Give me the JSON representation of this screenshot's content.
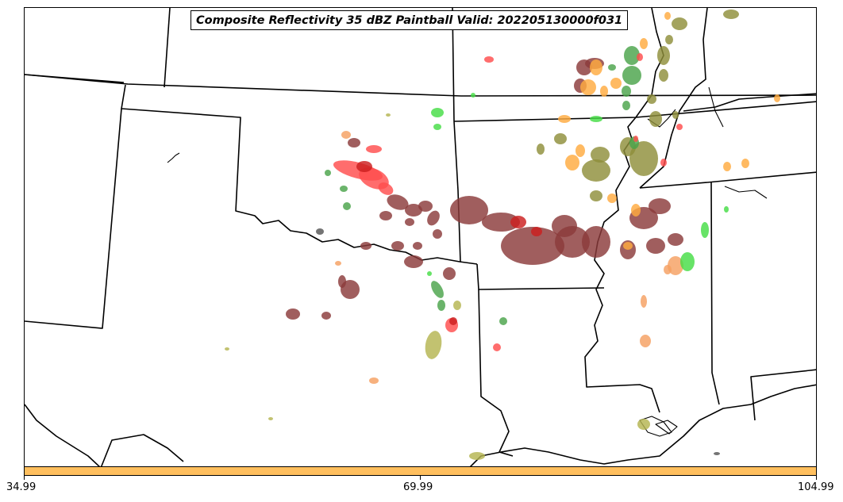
{
  "title": "Composite Reflectivity 35 dBZ Paintball Valid: 202205130000f031",
  "colorbar": {
    "color": "#ffbf5e",
    "ticks": [
      "34.99",
      "69.99",
      "104.99"
    ]
  },
  "colors": {
    "dark_red": "#8b3a3a",
    "crimson": "#cc1f1f",
    "red": "#ff4d4d",
    "orange": "#ffab40",
    "light_orange": "#f5a062",
    "olive": "#8f8f3a",
    "khaki": "#b5b550",
    "green": "#4ba34b",
    "bright_green": "#45dd45",
    "slate": "#555555",
    "boundary": "#000000"
  }
}
